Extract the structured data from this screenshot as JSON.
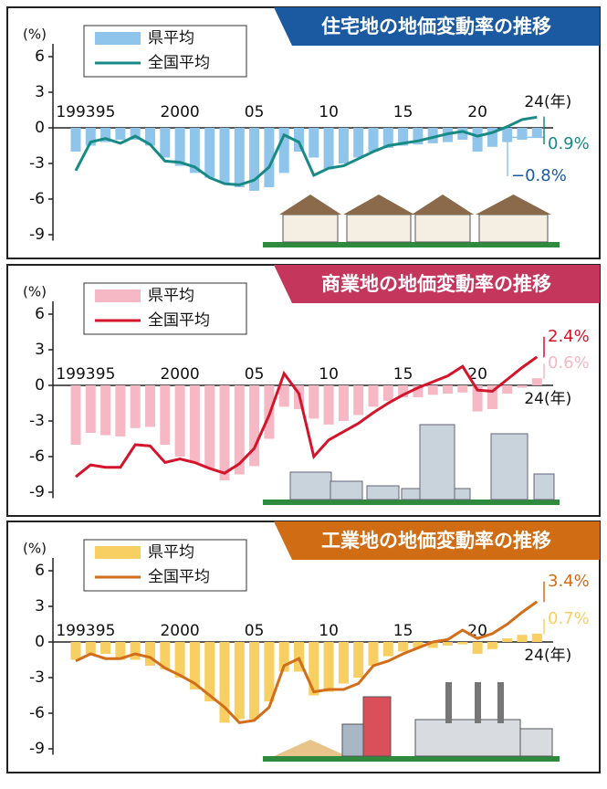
{
  "chart_data": [
    {
      "type": "combo",
      "title": "住宅地の地価変動率の推移",
      "ylabel": "(%)",
      "title_color": "#1b5aa0",
      "categories": [
        "1993",
        null,
        "95",
        null,
        null,
        null,
        null,
        "2000",
        null,
        null,
        null,
        null,
        "05",
        null,
        null,
        null,
        null,
        "10",
        null,
        null,
        null,
        null,
        "15",
        null,
        null,
        null,
        null,
        "20",
        null,
        null,
        null,
        "24(年)"
      ],
      "ylim": [
        -9.5,
        7
      ],
      "yticks": [
        6,
        3,
        0,
        -3,
        -6,
        -9
      ],
      "series": [
        {
          "name": "県平均",
          "kind": "bar",
          "color": "#8fc5ea",
          "values": [
            -2.0,
            -1.5,
            -1.2,
            -1.0,
            -1.0,
            -1.5,
            -2.5,
            -3.2,
            -3.8,
            -4.2,
            -4.6,
            -5.0,
            -5.3,
            -5.0,
            -3.8,
            -2.0,
            -2.5,
            -3.5,
            -3.0,
            -2.5,
            -2.0,
            -1.7,
            -1.5,
            -1.4,
            -1.3,
            -1.2,
            -1.0,
            -2.0,
            -1.6,
            -1.2,
            -1.0,
            -0.8
          ],
          "value_labels": [
            null,
            null,
            null,
            null,
            null,
            null,
            null,
            null,
            null,
            null,
            null,
            null,
            null,
            null,
            null,
            null,
            null,
            null,
            null,
            null,
            null,
            null,
            null,
            null,
            null,
            null,
            null,
            null,
            null,
            null,
            null,
            "−0.8%"
          ]
        },
        {
          "name": "全国平均",
          "kind": "line",
          "color": "#178a86",
          "values": [
            -3.6,
            -1.2,
            -0.9,
            -1.3,
            -0.7,
            -1.4,
            -2.8,
            -2.9,
            -3.3,
            -4.2,
            -4.7,
            -4.8,
            -4.4,
            -3.3,
            -0.6,
            -1.2,
            -4.0,
            -3.4,
            -3.2,
            -2.6,
            -2.0,
            -1.5,
            -1.3,
            -1.1,
            -0.8,
            -0.5,
            -0.3,
            -0.7,
            -0.4,
            0.1,
            0.7,
            0.9
          ],
          "value_labels": [
            null,
            null,
            null,
            null,
            null,
            null,
            null,
            null,
            null,
            null,
            null,
            null,
            null,
            null,
            null,
            null,
            null,
            null,
            null,
            null,
            null,
            null,
            null,
            null,
            null,
            null,
            null,
            null,
            null,
            null,
            null,
            "0.9%"
          ]
        }
      ]
    },
    {
      "type": "combo",
      "title": "商業地の地価変動率の推移",
      "ylabel": "(%)",
      "title_color": "#c5365c",
      "categories": [
        "1993",
        null,
        "95",
        null,
        null,
        null,
        null,
        "2000",
        null,
        null,
        null,
        null,
        "05",
        null,
        null,
        null,
        null,
        "10",
        null,
        null,
        null,
        null,
        "15",
        null,
        null,
        null,
        null,
        "20",
        null,
        null,
        null,
        "24(年)"
      ],
      "ylim": [
        -9.5,
        7
      ],
      "yticks": [
        6,
        3,
        0,
        -3,
        -6,
        -9
      ],
      "series": [
        {
          "name": "県平均",
          "kind": "bar",
          "color": "#f5b8c4",
          "values": [
            -5.0,
            -4.0,
            -4.2,
            -4.3,
            -3.6,
            -3.5,
            -5.0,
            -6.0,
            -6.5,
            -7.0,
            -8.0,
            -7.5,
            -6.8,
            -4.5,
            -1.8,
            -2.0,
            -2.8,
            -3.3,
            -3.0,
            -2.5,
            -1.8,
            -1.3,
            -1.0,
            -1.0,
            -0.8,
            -0.7,
            -0.6,
            -2.2,
            -2.0,
            -0.7,
            -0.2,
            0.6
          ],
          "value_labels": [
            null,
            null,
            null,
            null,
            null,
            null,
            null,
            null,
            null,
            null,
            null,
            null,
            null,
            null,
            null,
            null,
            null,
            null,
            null,
            null,
            null,
            null,
            null,
            null,
            null,
            null,
            null,
            null,
            null,
            null,
            null,
            "0.6%"
          ]
        },
        {
          "name": "全国平均",
          "kind": "line",
          "color": "#d4142a",
          "values": [
            -7.7,
            -6.7,
            -6.9,
            -6.9,
            -5.0,
            -5.1,
            -6.5,
            -6.2,
            -6.5,
            -7.0,
            -7.4,
            -6.6,
            -5.3,
            -2.5,
            1.0,
            -0.7,
            -6.0,
            -4.6,
            -3.9,
            -3.2,
            -2.3,
            -1.5,
            -0.8,
            -0.2,
            0.3,
            0.8,
            1.6,
            -0.4,
            -0.5,
            0.5,
            1.5,
            2.4
          ],
          "value_labels": [
            null,
            null,
            null,
            null,
            null,
            null,
            null,
            null,
            null,
            null,
            null,
            null,
            null,
            null,
            null,
            null,
            null,
            null,
            null,
            null,
            null,
            null,
            null,
            null,
            null,
            null,
            null,
            null,
            null,
            null,
            null,
            "2.4%"
          ]
        }
      ]
    },
    {
      "type": "combo",
      "title": "工業地の地価変動率の推移",
      "ylabel": "(%)",
      "title_color": "#d06c14",
      "categories": [
        "1993",
        null,
        "95",
        null,
        null,
        null,
        null,
        "2000",
        null,
        null,
        null,
        null,
        "05",
        null,
        null,
        null,
        null,
        "10",
        null,
        null,
        null,
        null,
        "15",
        null,
        null,
        null,
        null,
        "20",
        null,
        null,
        null,
        "24(年)"
      ],
      "ylim": [
        -9.5,
        7
      ],
      "yticks": [
        6,
        3,
        0,
        -3,
        -6,
        -9
      ],
      "series": [
        {
          "name": "県平均",
          "kind": "bar",
          "color": "#f8cf62",
          "values": [
            -1.5,
            -1.0,
            -1.0,
            -1.5,
            -1.5,
            -2.0,
            -2.3,
            -3.0,
            -4.0,
            -5.0,
            -6.8,
            -6.5,
            -6.5,
            -5.0,
            -2.5,
            -2.5,
            -4.5,
            -4.2,
            -3.5,
            -3.0,
            -2.0,
            -1.2,
            -0.8,
            -0.5,
            -0.5,
            -0.3,
            -0.2,
            -1.0,
            -0.6,
            0.3,
            0.6,
            0.7
          ],
          "value_labels": [
            null,
            null,
            null,
            null,
            null,
            null,
            null,
            null,
            null,
            null,
            null,
            null,
            null,
            null,
            null,
            null,
            null,
            null,
            null,
            null,
            null,
            null,
            null,
            null,
            null,
            null,
            null,
            null,
            null,
            null,
            null,
            "0.7%"
          ]
        },
        {
          "name": "全国平均",
          "kind": "line",
          "color": "#d26d1a",
          "values": [
            -1.6,
            -1.0,
            -1.4,
            -1.4,
            -1.0,
            -1.3,
            -2.2,
            -2.8,
            -3.5,
            -4.5,
            -5.5,
            -6.8,
            -6.6,
            -5.5,
            -2.0,
            -1.4,
            -4.2,
            -4.0,
            -4.0,
            -3.5,
            -2.0,
            -1.6,
            -1.0,
            -0.5,
            0.0,
            0.2,
            1.0,
            0.3,
            0.7,
            1.5,
            2.5,
            3.4
          ],
          "value_labels": [
            null,
            null,
            null,
            null,
            null,
            null,
            null,
            null,
            null,
            null,
            null,
            null,
            null,
            null,
            null,
            null,
            null,
            null,
            null,
            null,
            null,
            null,
            null,
            null,
            null,
            null,
            null,
            null,
            null,
            null,
            null,
            "3.4%"
          ]
        }
      ]
    }
  ]
}
